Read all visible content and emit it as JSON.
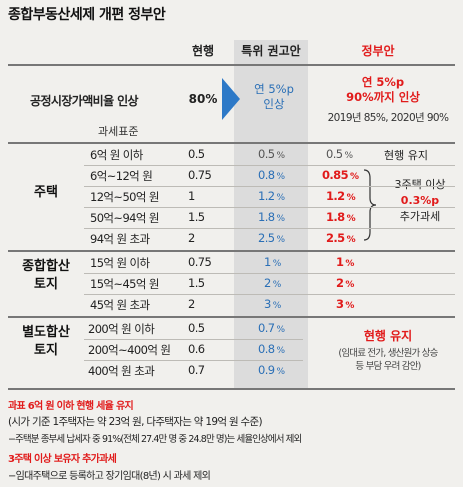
{
  "title": "종합부동산세제 개편 정부안",
  "headers": {
    "current": "현행",
    "committee": "특위 권고안",
    "government": "정부안"
  },
  "fmv": {
    "label": "공정시장가액비율 인상",
    "current": "80%",
    "committee": "연 5%p 인상",
    "committee_l1": "연 5%p",
    "committee_l2": "인상",
    "gov_l1": "연 5%p",
    "gov_l2": "90%까지 인상",
    "gov_l3": "2019년 85%, 2020년 90%"
  },
  "tax_base_label": "과세표준",
  "housing": {
    "label": "주택",
    "rows": [
      {
        "bracket": "6억 원 이하",
        "current": "0.5",
        "committee": "0.5",
        "gov": "0.5",
        "gov_red": false,
        "committee_blue": false
      },
      {
        "bracket": "6억~12억 원",
        "current": "0.75",
        "committee": "0.8",
        "gov": "0.85",
        "gov_red": true,
        "committee_blue": true
      },
      {
        "bracket": "12억~50억 원",
        "current": "1",
        "committee": "1.2",
        "gov": "1.2",
        "gov_red": true,
        "committee_blue": true
      },
      {
        "bracket": "50억~94억 원",
        "current": "1.5",
        "committee": "1.8",
        "gov": "1.8",
        "gov_red": true,
        "committee_blue": true
      },
      {
        "bracket": "94억 원 초과",
        "current": "2",
        "committee": "2.5",
        "gov": "2.5",
        "gov_red": true,
        "committee_blue": true
      }
    ],
    "keep_note": "현행 유지",
    "extra_l1": "3주택 이상",
    "extra_l2": "0.3%p",
    "extra_l3": "추가과세"
  },
  "combined_land": {
    "label_l1": "종합합산",
    "label_l2": "토지",
    "rows": [
      {
        "bracket": "15억 원 이하",
        "current": "0.75",
        "committee": "1",
        "gov": "1"
      },
      {
        "bracket": "15억~45억 원",
        "current": "1.5",
        "committee": "2",
        "gov": "2"
      },
      {
        "bracket": "45억 원 초과",
        "current": "2",
        "committee": "3",
        "gov": "3"
      }
    ]
  },
  "separate_land": {
    "label_l1": "별도합산",
    "label_l2": "토지",
    "rows": [
      {
        "bracket": "200억 원 이하",
        "current": "0.5",
        "committee": "0.7"
      },
      {
        "bracket": "200억~400억 원",
        "current": "0.6",
        "committee": "0.8"
      },
      {
        "bracket": "400억 원 초과",
        "current": "0.7",
        "committee": "0.9"
      }
    ],
    "gov_keep": "현행 유지",
    "gov_note_l1": "(임대료 전가, 생산원가 상승",
    "gov_note_l2": "등 부담 우려 감안)"
  },
  "pct_unit": "%",
  "footnotes": {
    "f1": "과표 6억 원 이하 현행 세율 유지",
    "f2": "(시가 기준 1주택자는 약 23억 원, 다주택자는 약 19억 원 수준)",
    "f3": "−주택분 종부세 납세자 중 91%(전체 27.4만 명 중 24.8만 명)는 세율인상에서 제외",
    "f4": "3주택 이상 보유자 추가과세",
    "f5": "−임대주택으로 등록하고 장기임대(8년) 시 과세 제외"
  },
  "colors": {
    "red": "#e11b1b",
    "blue": "#2a6fb6",
    "arrow": "#2d79c7",
    "shade": "#dcdcdc",
    "bg": "#f1f0ed"
  }
}
